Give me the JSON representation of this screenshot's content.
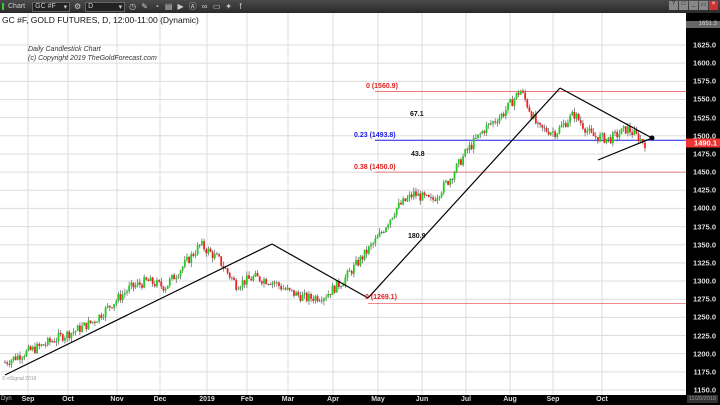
{
  "toolbar": {
    "title": "Chart",
    "symbol": "GC #F",
    "interval": "D",
    "icons": [
      "clock-icon",
      "pencil-icon",
      "draw-icon",
      "study-icon",
      "play-icon",
      "alert-icon",
      "link-icon",
      "comment-icon",
      "twitter-icon",
      "facebook-icon"
    ]
  },
  "window_buttons": [
    "?",
    "□",
    "_",
    "▭",
    "×"
  ],
  "chart": {
    "title": "GC #F, GOLD FUTURES, D, 12:00-11:00 (Dynamic)",
    "note1": "Daily Candlestick Chart",
    "note2": "(c) Copyright 2019 TheGoldForecast.com",
    "watermark": "© eSignal 2019",
    "top_value": "1651.3",
    "last_price": "1490.1",
    "end_date": "11/20/2019",
    "axis_mode": "Dyn",
    "colors": {
      "up": "#22cc22",
      "down": "#ee2222",
      "neutral": "#555555",
      "fib_red": "#e02020",
      "fib_blue": "#2020e0"
    }
  },
  "chart_data": {
    "type": "candlestick",
    "y_ticks": [
      "1625.0",
      "1600.0",
      "1575.0",
      "1550.0",
      "1525.0",
      "1500.0",
      "1475.0",
      "1450.0",
      "1425.0",
      "1400.0",
      "1375.0",
      "1350.0",
      "1325.0",
      "1300.0",
      "1275.0",
      "1250.0",
      "1225.0",
      "1200.0",
      "1175.0",
      "1150.0"
    ],
    "x_ticks": [
      "Sep",
      "Oct",
      "Nov",
      "Dec",
      "2019",
      "Feb",
      "Mar",
      "Apr",
      "May",
      "Jun",
      "Jul",
      "Aug",
      "Sep",
      "Oct"
    ],
    "price_path": [
      1188,
      1200,
      1210,
      1222,
      1232,
      1245,
      1268,
      1290,
      1300,
      1292,
      1320,
      1350,
      1330,
      1295,
      1305,
      1300,
      1285,
      1276,
      1280,
      1300,
      1330,
      1360,
      1400,
      1420,
      1410,
      1440,
      1480,
      1510,
      1530,
      1563,
      1510,
      1505,
      1530,
      1500,
      1495,
      1510,
      1490
    ],
    "fib_levels": [
      {
        "label": "0 (1560.9)",
        "value": 1560.9,
        "color": "red"
      },
      {
        "label": "0.23 (1493.8)",
        "value": 1493.8,
        "color": "blue"
      },
      {
        "label": "0.38 (1450.0)",
        "value": 1450.0,
        "color": "red"
      },
      {
        "label": "0 (1269.1)",
        "value": 1269.1,
        "color": "red"
      }
    ],
    "annotations": [
      "67.1",
      "43.8",
      "180.9"
    ]
  }
}
